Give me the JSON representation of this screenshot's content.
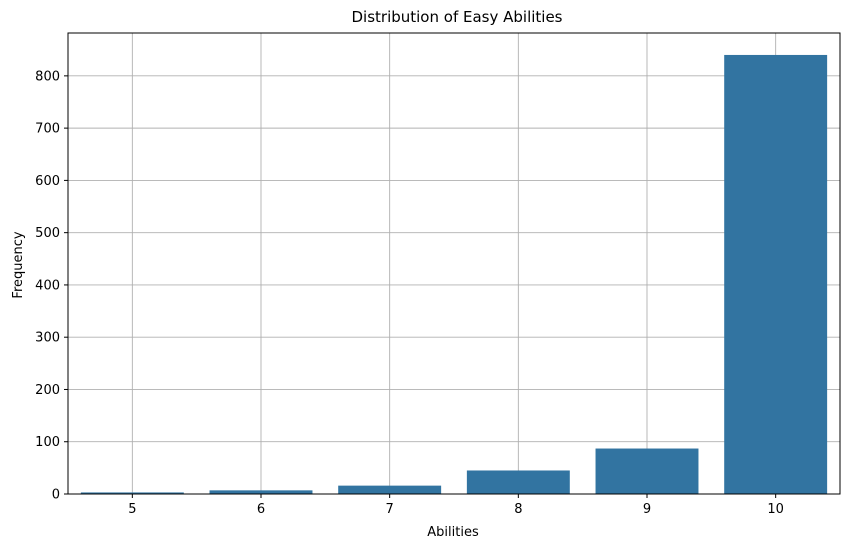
{
  "chart_data": {
    "type": "bar",
    "title": "Distribution of Easy Abilities",
    "xlabel": "Abilities",
    "ylabel": "Frequency",
    "categories": [
      "5",
      "6",
      "7",
      "8",
      "9",
      "10"
    ],
    "values": [
      3,
      7,
      16,
      45,
      87,
      840
    ],
    "ylim": [
      0,
      882
    ],
    "yticks": [
      0,
      100,
      200,
      300,
      400,
      500,
      600,
      700,
      800
    ],
    "grid": true,
    "legend": "none",
    "bar_color": "#3274a1",
    "grid_color": "#b0b0b0"
  }
}
